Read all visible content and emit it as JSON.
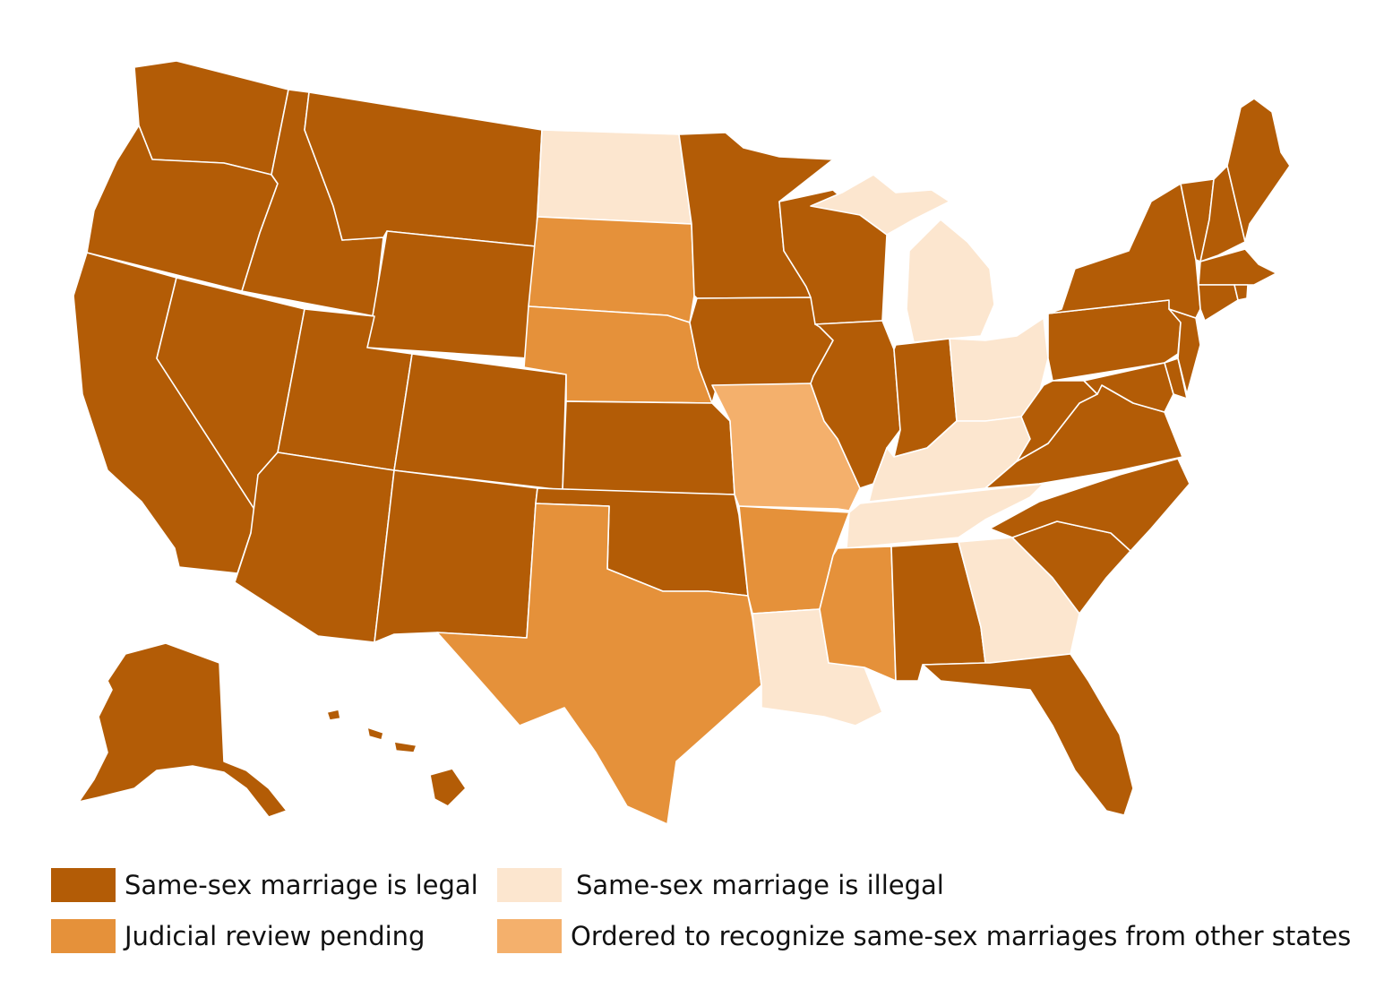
{
  "colors": {
    "legal": "#b35c06",
    "pending": "#e5913a",
    "illegal": "#fce6cf",
    "recognize": "#f4b06c"
  },
  "legend": [
    {
      "key": "legal",
      "label": "Same-sex marriage is legal"
    },
    {
      "key": "illegal",
      "label": "Same-sex marriage is illegal"
    },
    {
      "key": "pending",
      "label": "Judicial review pending"
    },
    {
      "key": "recognize",
      "label": "Ordered to recognize same-sex marriages from other states"
    }
  ],
  "states": {
    "WA": "legal",
    "OR": "legal",
    "CA": "legal",
    "ID": "legal",
    "NV": "legal",
    "MT": "legal",
    "WY": "legal",
    "UT": "legal",
    "AZ": "legal",
    "CO": "legal",
    "NM": "legal",
    "ND": "illegal",
    "SD": "pending",
    "NE": "pending",
    "KS": "legal",
    "OK": "legal",
    "TX": "pending",
    "MN": "legal",
    "IA": "legal",
    "MO": "recognize",
    "AR": "pending",
    "LA": "illegal",
    "WI": "legal",
    "IL": "legal",
    "MI": "illegal",
    "IN": "legal",
    "OH": "illegal",
    "KY": "illegal",
    "TN": "illegal",
    "MS": "pending",
    "AL": "legal",
    "GA": "illegal",
    "FL": "legal",
    "SC": "legal",
    "NC": "legal",
    "VA": "legal",
    "WV": "legal",
    "PA": "legal",
    "NY": "legal",
    "NJ": "legal",
    "DE": "legal",
    "MD": "legal",
    "VT": "legal",
    "NH": "legal",
    "ME": "legal",
    "MA": "legal",
    "CT": "legal",
    "RI": "legal",
    "AK": "legal",
    "HI": "legal"
  }
}
